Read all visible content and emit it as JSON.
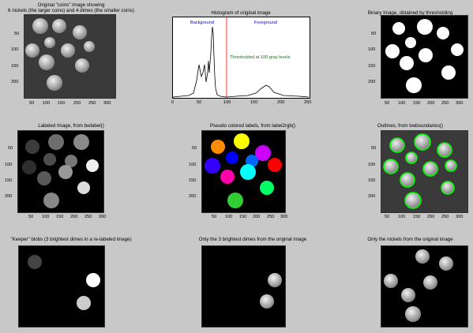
{
  "panels": [
    {
      "title": "Original \"coins\" image showing\n6 nickels (the larger coins) and 4 dimes (the smaller coins)",
      "yticks": [
        "50",
        "100",
        "150",
        "200"
      ],
      "xticks": [
        "50",
        "100",
        "150",
        "200",
        "250",
        "300"
      ]
    },
    {
      "title": "Histogram of original image",
      "annotations": {
        "background": "Background",
        "foreground": "Foreground",
        "threshold": "Thresholded at 100 gray levels"
      },
      "yticks": [],
      "xticks": [
        "0",
        "50",
        "100",
        "150",
        "200",
        "250"
      ]
    },
    {
      "title": "Binary Image, obtained by thresholding",
      "yticks": [
        "50",
        "100",
        "150",
        "200"
      ],
      "xticks": [
        "50",
        "100",
        "150",
        "200",
        "250",
        "300"
      ]
    },
    {
      "title": "Labeled Image, from bwlabel()",
      "yticks": [
        "50",
        "100",
        "150",
        "200"
      ],
      "xticks": [
        "50",
        "100",
        "150",
        "200",
        "250",
        "300"
      ]
    },
    {
      "title": "Pseudo colored labels, from label2rgb()",
      "yticks": [
        "50",
        "100",
        "150",
        "200"
      ],
      "xticks": [
        "50",
        "100",
        "150",
        "200",
        "250",
        "300"
      ]
    },
    {
      "title": "Outlines, from bwboundaries()",
      "yticks": [
        "50",
        "100",
        "150",
        "200"
      ],
      "xticks": [
        "50",
        "100",
        "150",
        "200",
        "250",
        "300"
      ]
    },
    {
      "title": "\"Keeper\" blobs (3 brightest dimes in a re-labeled image)",
      "yticks": [],
      "xticks": []
    },
    {
      "title": "Only the 3 brightest dimes from the original image",
      "yticks": [],
      "xticks": []
    },
    {
      "title": "Only the nickels from the original image",
      "yticks": [],
      "xticks": []
    }
  ],
  "colors": {
    "figure_bg": "#c8c8c8",
    "threshold_line": "#ff0000",
    "background_label": "#0000ff",
    "foreground_label": "#0000ff",
    "threshold_label": "#008000",
    "outline": "#00ff00",
    "pseudo": [
      "#ff8c00",
      "#ffff00",
      "#cc00ff",
      "#0000ff",
      "#0066ff",
      "#ff00ff",
      "#ff0000",
      "#ff0099",
      "#00ffff",
      "#00ff66",
      "#33cc33"
    ]
  }
}
